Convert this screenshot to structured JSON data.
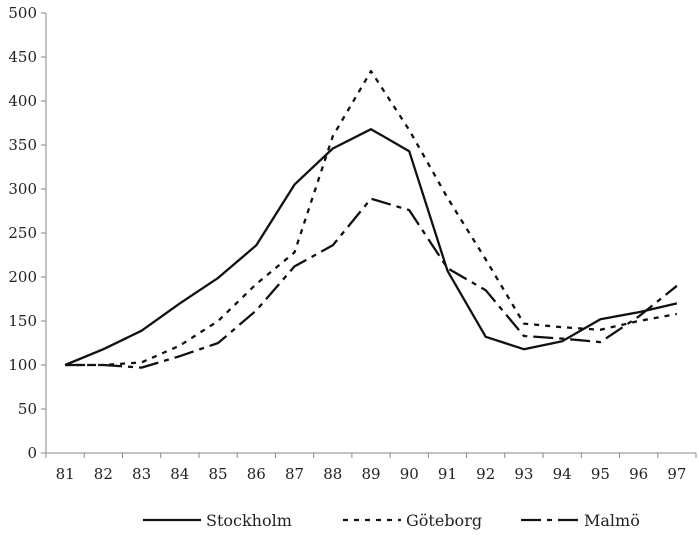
{
  "chart_data": {
    "type": "line",
    "title": "",
    "xlabel": "",
    "ylabel": "",
    "categories": [
      "81",
      "82",
      "83",
      "84",
      "85",
      "86",
      "87",
      "88",
      "89",
      "90",
      "91",
      "92",
      "93",
      "94",
      "95",
      "96",
      "97"
    ],
    "ylim": [
      0,
      500
    ],
    "yticks": [
      0,
      50,
      100,
      150,
      200,
      250,
      300,
      350,
      400,
      450,
      500
    ],
    "grid": false,
    "legend_position": "bottom",
    "series": [
      {
        "name": "Stockholm",
        "style": "solid",
        "color": "#111111",
        "values": [
          100,
          118,
          139,
          170,
          199,
          236,
          305,
          346,
          368,
          343,
          207,
          132,
          118,
          127,
          152,
          160,
          170
        ]
      },
      {
        "name": "Göteborg",
        "style": "dotted",
        "color": "#111111",
        "values": [
          100,
          100,
          103,
          122,
          150,
          192,
          228,
          360,
          434,
          367,
          290,
          220,
          147,
          143,
          140,
          150,
          158
        ]
      },
      {
        "name": "Malmö",
        "style": "dashdot",
        "color": "#111111",
        "values": [
          100,
          100,
          97,
          110,
          125,
          162,
          212,
          236,
          289,
          276,
          210,
          185,
          133,
          130,
          126,
          155,
          190
        ]
      }
    ]
  }
}
